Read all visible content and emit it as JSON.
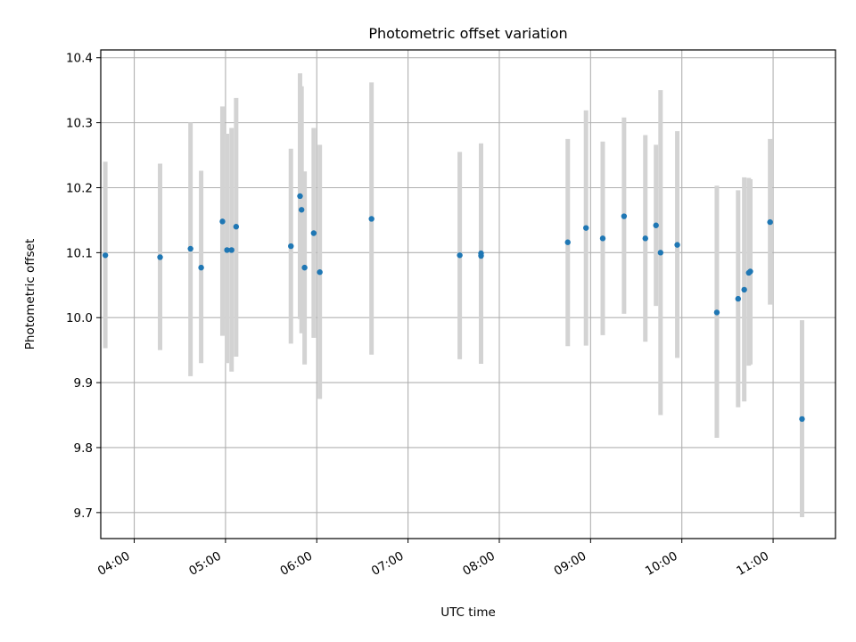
{
  "chart_data": {
    "type": "scatter",
    "title": "Photometric offset variation",
    "xlabel": "UTC time",
    "ylabel": "Photometric offset",
    "x_unit": "UTC time (HH:MM)",
    "xlim": [
      "03:38",
      "11:41"
    ],
    "ylim": [
      9.66,
      10.412
    ],
    "xticks": [
      "04:00",
      "05:00",
      "06:00",
      "07:00",
      "08:00",
      "09:00",
      "10:00",
      "11:00"
    ],
    "yticks": [
      "9.7",
      "9.8",
      "9.9",
      "10.0",
      "10.1",
      "10.2",
      "10.3",
      "10.4"
    ],
    "grid": true,
    "point_color": "#1f77b4",
    "errorbar_color": "#d3d3d3",
    "points": [
      {
        "x": "03:41",
        "y": 10.096,
        "ylow": 9.953,
        "yhigh": 10.24
      },
      {
        "x": "04:17",
        "y": 10.093,
        "ylow": 9.95,
        "yhigh": 10.237
      },
      {
        "x": "04:37",
        "y": 10.106,
        "ylow": 9.91,
        "yhigh": 10.3
      },
      {
        "x": "04:44",
        "y": 10.077,
        "ylow": 9.93,
        "yhigh": 10.226
      },
      {
        "x": "04:58",
        "y": 10.148,
        "ylow": 9.972,
        "yhigh": 10.325
      },
      {
        "x": "05:01",
        "y": 10.104,
        "ylow": 9.93,
        "yhigh": 10.283
      },
      {
        "x": "05:04",
        "y": 10.104,
        "ylow": 9.917,
        "yhigh": 10.292
      },
      {
        "x": "05:07",
        "y": 10.14,
        "ylow": 9.94,
        "yhigh": 10.338
      },
      {
        "x": "05:43",
        "y": 10.11,
        "ylow": 9.96,
        "yhigh": 10.26
      },
      {
        "x": "05:49",
        "y": 10.187,
        "ylow": 9.998,
        "yhigh": 10.376
      },
      {
        "x": "05:50",
        "y": 10.166,
        "ylow": 9.976,
        "yhigh": 10.356
      },
      {
        "x": "05:52",
        "y": 10.077,
        "ylow": 9.928,
        "yhigh": 10.225
      },
      {
        "x": "05:58",
        "y": 10.13,
        "ylow": 9.969,
        "yhigh": 10.292
      },
      {
        "x": "06:02",
        "y": 10.07,
        "ylow": 9.875,
        "yhigh": 10.266
      },
      {
        "x": "06:36",
        "y": 10.152,
        "ylow": 9.943,
        "yhigh": 10.362
      },
      {
        "x": "07:34",
        "y": 10.096,
        "ylow": 9.936,
        "yhigh": 10.255
      },
      {
        "x": "07:48",
        "y": 10.099,
        "ylow": 9.929,
        "yhigh": 10.268
      },
      {
        "x": "07:48",
        "y": 10.095,
        "ylow": 9.929,
        "yhigh": 10.268
      },
      {
        "x": "08:45",
        "y": 10.116,
        "ylow": 9.956,
        "yhigh": 10.275
      },
      {
        "x": "08:57",
        "y": 10.138,
        "ylow": 9.957,
        "yhigh": 10.319
      },
      {
        "x": "09:08",
        "y": 10.122,
        "ylow": 9.973,
        "yhigh": 10.271
      },
      {
        "x": "09:22",
        "y": 10.156,
        "ylow": 10.006,
        "yhigh": 10.308
      },
      {
        "x": "09:36",
        "y": 10.122,
        "ylow": 9.963,
        "yhigh": 10.281
      },
      {
        "x": "09:43",
        "y": 10.142,
        "ylow": 10.018,
        "yhigh": 10.266
      },
      {
        "x": "09:46",
        "y": 10.1,
        "ylow": 9.85,
        "yhigh": 10.35
      },
      {
        "x": "09:57",
        "y": 10.112,
        "ylow": 9.938,
        "yhigh": 10.287
      },
      {
        "x": "10:23",
        "y": 10.008,
        "ylow": 9.815,
        "yhigh": 10.203
      },
      {
        "x": "10:37",
        "y": 10.029,
        "ylow": 9.862,
        "yhigh": 10.196
      },
      {
        "x": "10:41",
        "y": 10.043,
        "ylow": 9.871,
        "yhigh": 10.216
      },
      {
        "x": "10:44",
        "y": 10.069,
        "ylow": 9.926,
        "yhigh": 10.215
      },
      {
        "x": "10:45",
        "y": 10.071,
        "ylow": 9.928,
        "yhigh": 10.213
      },
      {
        "x": "10:58",
        "y": 10.147,
        "ylow": 10.02,
        "yhigh": 10.275
      },
      {
        "x": "11:19",
        "y": 9.844,
        "ylow": 9.693,
        "yhigh": 9.996
      }
    ]
  }
}
